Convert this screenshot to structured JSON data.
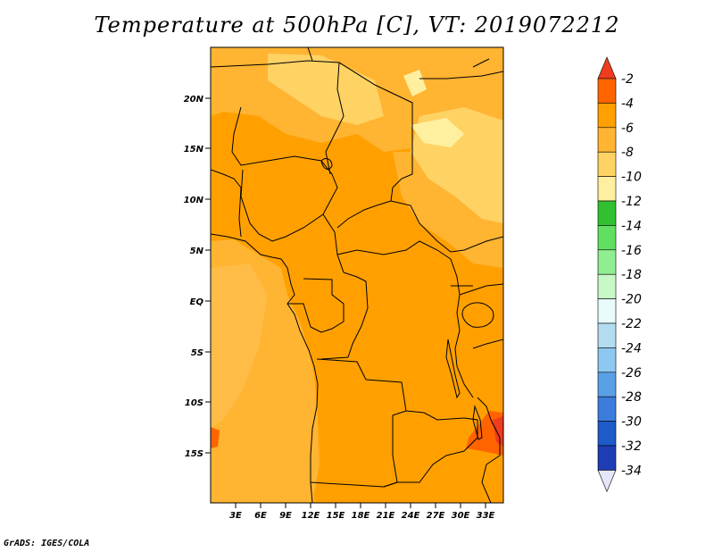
{
  "title": "Temperature at 500hPa [C], VT: 2019072212",
  "credit": "GrADS: IGES/COLA",
  "map": {
    "lat_ticks": [
      "20N",
      "15N",
      "10N",
      "5N",
      "EQ",
      "5S",
      "10S",
      "15S"
    ],
    "lon_ticks": [
      "3E",
      "6E",
      "9E",
      "12E",
      "15E",
      "18E",
      "21E",
      "24E",
      "27E",
      "30E",
      "33E"
    ],
    "fill_colors": {
      "minus4_to_minus6": "#ffa000",
      "minus6_to_minus8": "#ffb432",
      "minus8_to_minus10": "#ffd264",
      "minus10_to_minus12": "#fff0a0",
      "minus2_to_minus4": "#ff6400",
      "above_minus2": "#f03c1e"
    }
  },
  "colorbar": {
    "labels": [
      "-2",
      "-4",
      "-6",
      "-8",
      "-10",
      "-12",
      "-14",
      "-16",
      "-18",
      "-20",
      "-22",
      "-24",
      "-26",
      "-28",
      "-30",
      "-32",
      "-34"
    ],
    "colors": [
      "#f03c1e",
      "#ff6400",
      "#ffa000",
      "#ffb432",
      "#ffd264",
      "#fff0a0",
      "#30c030",
      "#60e060",
      "#90ee90",
      "#c8f8c8",
      "#e8fafa",
      "#b4dcf0",
      "#8cc8f0",
      "#5aa0e6",
      "#3c7ddc",
      "#1e5ac8",
      "#1e3cb4",
      "#0a1478",
      "#e6e6fa"
    ]
  }
}
